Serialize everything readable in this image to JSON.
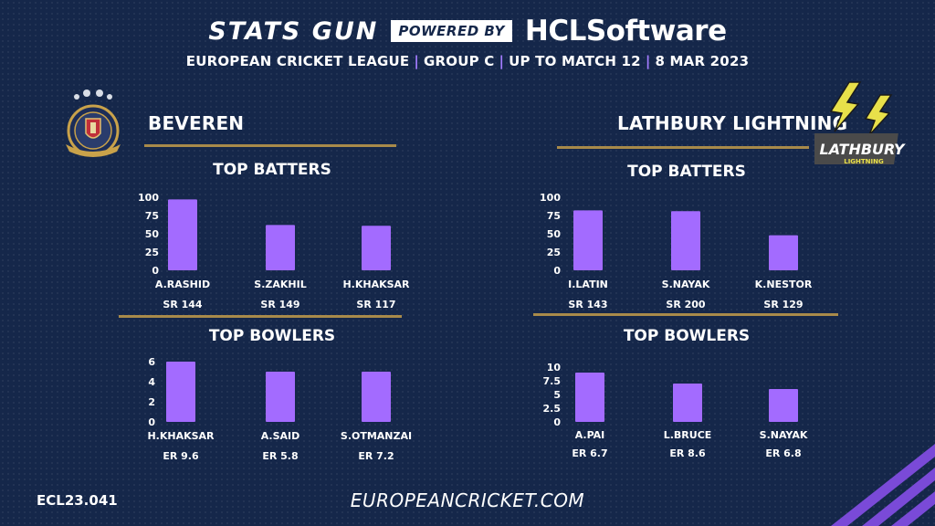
{
  "header": {
    "brand_left": "STATS GUN",
    "powered_by": "POWERED BY",
    "sponsor": "HCLSoftware",
    "league": "EUROPEAN CRICKET LEAGUE",
    "group": "GROUP  C",
    "match": "UP TO MATCH  12",
    "date": "8 MAR 2023"
  },
  "colors": {
    "background": "#15274a",
    "bar": "#a36bff",
    "accent_separator": "#a37cff",
    "gold_line": "#a88a4a",
    "lightning_yellow": "#e8e04a"
  },
  "teams": {
    "left": {
      "name": "BEVEREN",
      "logo_icon": "beveren-crest-icon"
    },
    "right": {
      "name": "LATHBURY LIGHTNING",
      "logo_icon": "lathbury-lightning-logo",
      "logo_text": "LATHBURY",
      "logo_subtext": "LIGHTNING"
    }
  },
  "sections": {
    "batters_title": "TOP BATTERS",
    "bowlers_title": "TOP BOWLERS"
  },
  "chart_data": [
    {
      "type": "bar",
      "id": "beveren-batters",
      "title": "TOP BATTERS",
      "categories": [
        "A.RASHID",
        "S.ZAKHIL",
        "H.KHAKSAR"
      ],
      "values": [
        97,
        62,
        61
      ],
      "sublabels": [
        "SR 144",
        "SR 149",
        "SR 117"
      ],
      "ylim": [
        0,
        100
      ],
      "yticks": [
        0,
        25,
        50,
        75,
        100
      ],
      "ytick_labels": [
        "0",
        "25",
        "50",
        "75",
        "100"
      ],
      "grid": false
    },
    {
      "type": "bar",
      "id": "beveren-bowlers",
      "title": "TOP BOWLERS",
      "categories": [
        "H.KHAKSAR",
        "A.SAID",
        "S.OTMANZAI"
      ],
      "values": [
        6,
        5,
        5
      ],
      "sublabels": [
        "ER  9.6",
        "ER 5.8",
        "ER 7.2"
      ],
      "ylim": [
        0,
        6
      ],
      "yticks": [
        0,
        2,
        4,
        6
      ],
      "ytick_labels": [
        "0",
        "2",
        "4",
        "6"
      ],
      "grid": false
    },
    {
      "type": "bar",
      "id": "lathbury-batters",
      "title": "TOP BATTERS",
      "categories": [
        "I.LATIN",
        "S.NAYAK",
        "K.NESTOR"
      ],
      "values": [
        82,
        81,
        48
      ],
      "sublabels": [
        "SR 143",
        "SR 200",
        "SR 129"
      ],
      "ylim": [
        0,
        100
      ],
      "yticks": [
        0,
        25,
        50,
        75,
        100
      ],
      "ytick_labels": [
        "0",
        "25",
        "50",
        "75",
        "100"
      ],
      "grid": false
    },
    {
      "type": "bar",
      "id": "lathbury-bowlers",
      "title": "TOP BOWLERS",
      "categories": [
        "A.PAI",
        "L.BRUCE",
        "S.NAYAK"
      ],
      "values": [
        9,
        7,
        6
      ],
      "sublabels": [
        "ER 6.7",
        "ER 8.6",
        "ER 6.8"
      ],
      "ylim": [
        0,
        10
      ],
      "yticks": [
        0,
        2.5,
        5,
        7.5,
        10
      ],
      "ytick_labels": [
        "0",
        "2.5",
        "5",
        "7.5",
        "10"
      ],
      "grid": false
    }
  ],
  "footer": {
    "code": "ECL23.041",
    "url": "EUROPEANCRICKET.COM"
  }
}
